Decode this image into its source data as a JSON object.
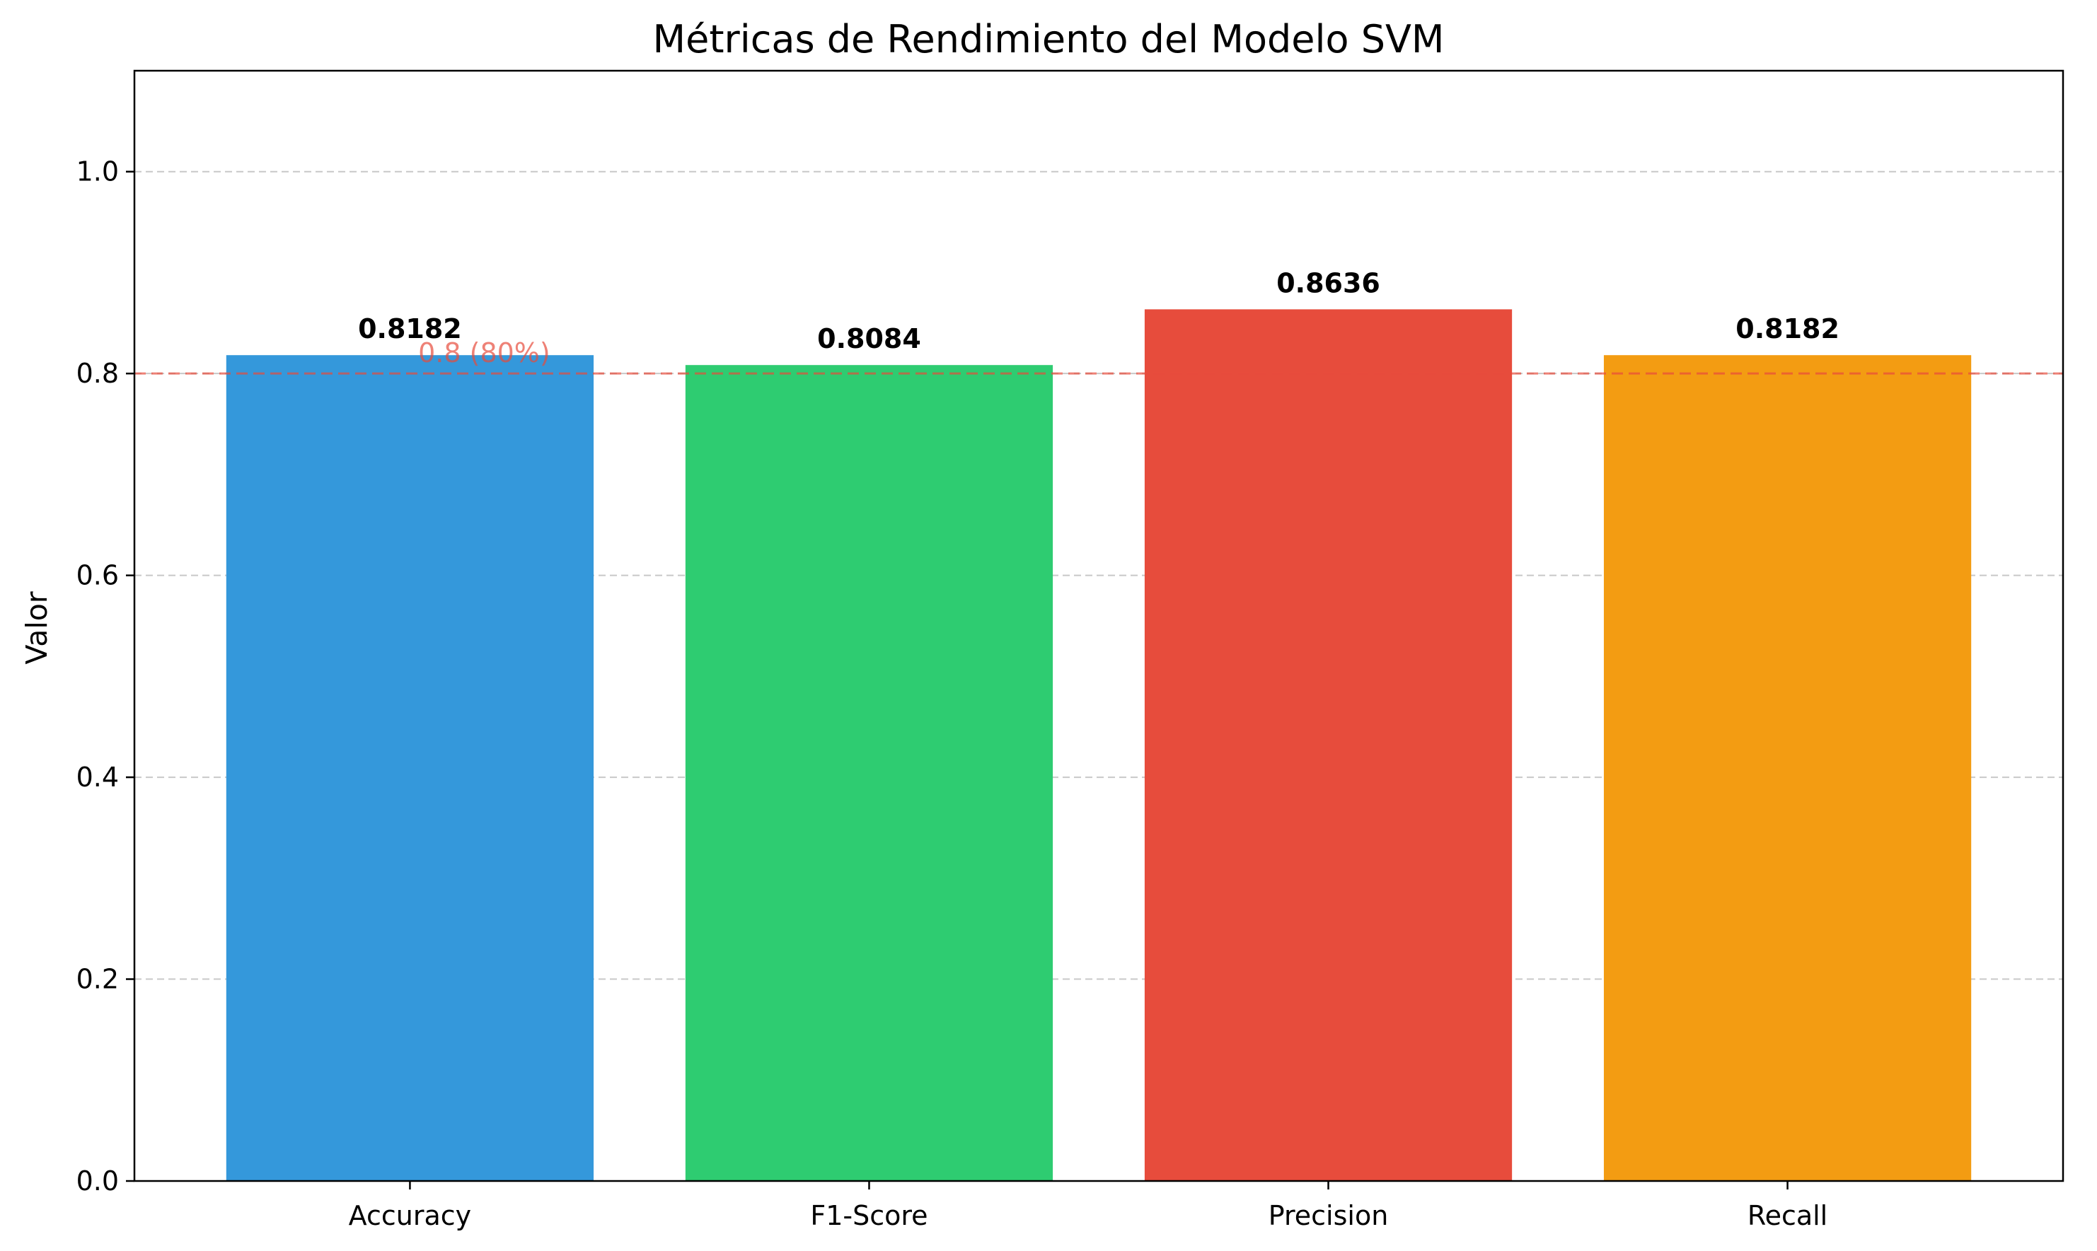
{
  "chart_data": {
    "type": "bar",
    "title": "Métricas de Rendimiento del Modelo SVM",
    "xlabel": "",
    "ylabel": "Valor",
    "categories": [
      "Accuracy",
      "F1-Score",
      "Precision",
      "Recall"
    ],
    "values": [
      0.8182,
      0.8084,
      0.8636,
      0.8182
    ],
    "value_labels": [
      "0.8182",
      "0.8084",
      "0.8636",
      "0.8182"
    ],
    "colors": [
      "#3498db",
      "#2ecc71",
      "#e74c3c",
      "#f39c12"
    ],
    "ylim": [
      0,
      1.1
    ],
    "yticks": [
      0.0,
      0.2,
      0.4,
      0.6,
      0.8,
      1.0
    ],
    "ytick_labels": [
      "0.0",
      "0.2",
      "0.4",
      "0.6",
      "0.8",
      "1.0"
    ],
    "grid": "y-dashed",
    "reference_line": {
      "value": 0.8,
      "label": "0.8 (80%)",
      "color": "#e74c3c"
    }
  }
}
